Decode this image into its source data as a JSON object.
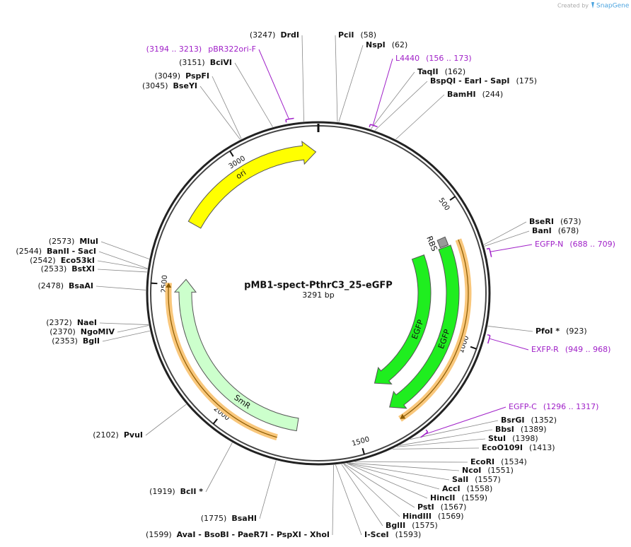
{
  "header": {
    "credit": "Created by",
    "brand": "SnapGene"
  },
  "map": {
    "name": "pMB1-spect-PthrC3_25-eGFP",
    "length": "3291 bp"
  },
  "ticks": [
    "500",
    "1000",
    "1500",
    "2000",
    "2500",
    "3000"
  ],
  "features": [
    {
      "label": "ori"
    },
    {
      "label": "SmR"
    },
    {
      "label": "EGFP"
    },
    {
      "label": "EGFP"
    },
    {
      "label": "RBS"
    }
  ],
  "enzymes": [
    {
      "name": "PciI",
      "position": "(58)"
    },
    {
      "name": "NspI",
      "position": "(62)"
    },
    {
      "name": "TaqII",
      "position": "(162)"
    },
    {
      "name": "BspQI - EarI - SapI",
      "position": "(175)"
    },
    {
      "name": "BamHI",
      "position": "(244)"
    },
    {
      "name": "BseRI",
      "position": "(673)"
    },
    {
      "name": "BanI",
      "position": "(678)"
    },
    {
      "name": "PfoI *",
      "position": "(923)"
    },
    {
      "name": "BsrGI",
      "position": "(1352)"
    },
    {
      "name": "BbsI",
      "position": "(1389)"
    },
    {
      "name": "StuI",
      "position": "(1398)"
    },
    {
      "name": "EcoO109I",
      "position": "(1413)"
    },
    {
      "name": "EcoRI",
      "position": "(1534)"
    },
    {
      "name": "NcoI",
      "position": "(1551)"
    },
    {
      "name": "SalI",
      "position": "(1557)"
    },
    {
      "name": "AccI",
      "position": "(1558)"
    },
    {
      "name": "HincII",
      "position": "(1559)"
    },
    {
      "name": "PstI",
      "position": "(1567)"
    },
    {
      "name": "HindIII",
      "position": "(1569)"
    },
    {
      "name": "BglII",
      "position": "(1575)"
    },
    {
      "name": "I-SceI",
      "position": "(1593)"
    },
    {
      "name": "AvaI - BsoBI - PaeR7I - PspXI - XhoI",
      "position": "(1599)"
    },
    {
      "name": "BsaHI",
      "position": "(1775)"
    },
    {
      "name": "BclI *",
      "position": "(1919)"
    },
    {
      "name": "PvuI",
      "position": "(2102)"
    },
    {
      "name": "BglI",
      "position": "(2353)"
    },
    {
      "name": "NgoMIV",
      "position": "(2370)"
    },
    {
      "name": "NaeI",
      "position": "(2372)"
    },
    {
      "name": "BsaAI",
      "position": "(2478)"
    },
    {
      "name": "BstXI",
      "position": "(2533)"
    },
    {
      "name": "Eco53kI",
      "position": "(2542)"
    },
    {
      "name": "BanII - SacI",
      "position": "(2544)"
    },
    {
      "name": "MluI",
      "position": "(2573)"
    },
    {
      "name": "BseYI",
      "position": "(3045)"
    },
    {
      "name": "PspFI",
      "position": "(3049)"
    },
    {
      "name": "BciVI",
      "position": "(3151)"
    },
    {
      "name": "DrdI",
      "position": "(3247)"
    }
  ],
  "primers": [
    {
      "name": "L4440",
      "range": "(156 .. 173)"
    },
    {
      "name": "EGFP-N",
      "range": "(688 .. 709)"
    },
    {
      "name": "EXFP-R",
      "range": "(949 .. 968)"
    },
    {
      "name": "EGFP-C",
      "range": "(1296 .. 1317)"
    },
    {
      "name": "pBR322ori-F",
      "range": "(3194 .. 3213)"
    }
  ]
}
